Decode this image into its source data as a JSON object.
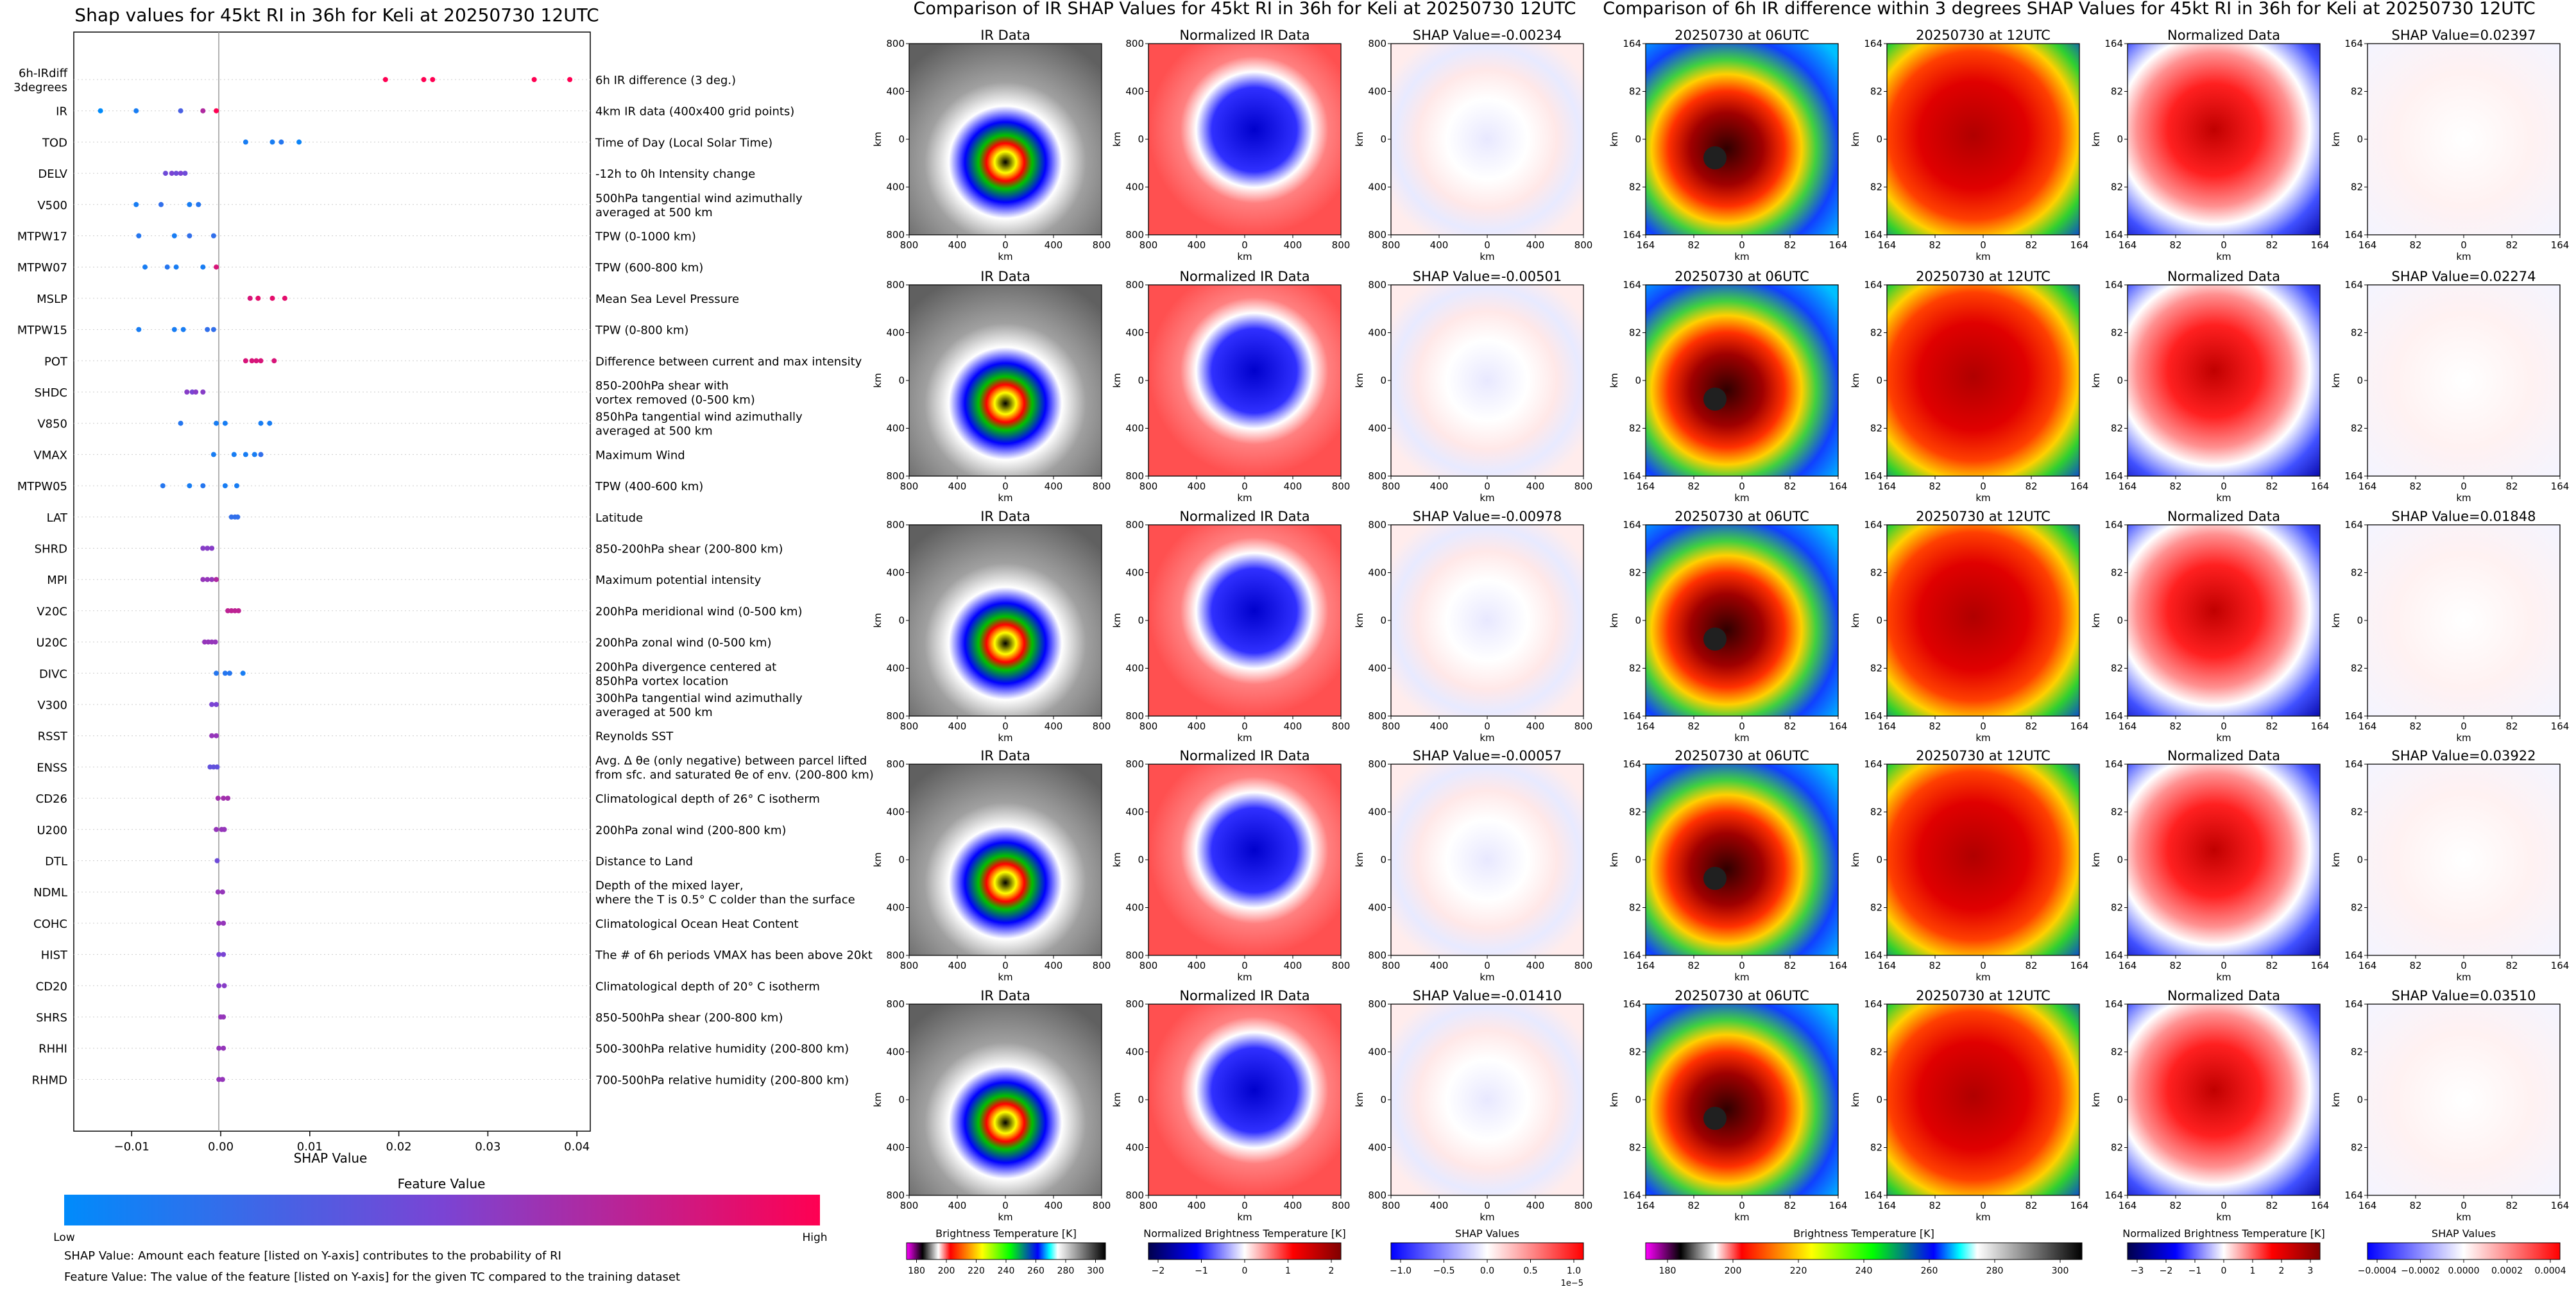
{
  "shap_panel": {
    "title": "Shap values for 45kt RI in 36h for Keli at 20250730 12UTC",
    "xlabel": "SHAP Value",
    "xticks": [
      "−0.01",
      "0.00",
      "0.01",
      "0.02",
      "0.03",
      "0.04"
    ],
    "colorbar_title": "Feature Value",
    "colorbar_low": "Low",
    "colorbar_high": "High",
    "note1": "SHAP Value: Amount each feature [listed on Y-axis] contributes to the probability of RI",
    "note2": "Feature Value: The value of the feature [listed on Y-axis] for the given TC compared to the training dataset"
  },
  "ir_section": {
    "title": "Comparison of IR SHAP Values for 45kt RI in 36h for Keli at 20250730 12UTC",
    "col_titles": [
      "IR Data",
      "Normalized IR Data"
    ],
    "shap_titles": [
      "SHAP Value=-0.00234",
      "SHAP Value=-0.00501",
      "SHAP Value=-0.00978",
      "SHAP Value=-0.00057",
      "SHAP Value=-0.01410"
    ],
    "axis_label": "km",
    "ticks": [
      "800",
      "400",
      "0",
      "400",
      "800"
    ],
    "cbar1_label": "Brightness Temperature [K]",
    "cbar1_ticks": [
      "180",
      "200",
      "220",
      "240",
      "260",
      "280",
      "300"
    ],
    "cbar2_label": "Normalized Brightness Temperature [K]",
    "cbar2_ticks": [
      "−2",
      "−1",
      "0",
      "1",
      "2"
    ],
    "cbar3_label": "SHAP Values",
    "cbar3_ticks": [
      "−1.0",
      "−0.5",
      "0.0",
      "0.5",
      "1.0"
    ],
    "cbar3_exp": "1e−5"
  },
  "diff_section": {
    "title": "Comparison of 6h IR difference within 3 degrees SHAP Values for 45kt RI in 36h for Keli at 20250730 12UTC",
    "col_titles": [
      "20250730 at 06UTC",
      "20250730 at 12UTC",
      "Normalized Data"
    ],
    "shap_titles": [
      "SHAP Value=0.02397",
      "SHAP Value=0.02274",
      "SHAP Value=0.01848",
      "SHAP Value=0.03922",
      "SHAP Value=0.03510"
    ],
    "axis_label": "km",
    "ticks": [
      "164",
      "82",
      "0",
      "82",
      "164"
    ],
    "cbar1_label": "Brightness Temperature [K]",
    "cbar1_ticks": [
      "180",
      "200",
      "220",
      "240",
      "260",
      "280",
      "300"
    ],
    "cbar2_label": "Normalized Brightness Temperature [K]",
    "cbar2_ticks": [
      "−3",
      "−2",
      "−1",
      "0",
      "1",
      "2",
      "3"
    ],
    "cbar3_label": "SHAP Values",
    "cbar3_ticks": [
      "−0.0004",
      "−0.0002",
      "0.0000",
      "0.0002",
      "0.0004"
    ]
  },
  "chart_data": {
    "type": "scatter",
    "title": "Shap values for 45kt RI in 36h for Keli at 20250730 12UTC",
    "xlabel": "SHAP Value",
    "xlim": [
      -0.0165,
      0.0415
    ],
    "legend": "colorbar-bottom",
    "features": [
      {
        "code": "6h-IRdiff\n3degrees",
        "desc": "6h IR difference (3 deg.)",
        "points": [
          [
            0.0185,
            1
          ],
          [
            0.0228,
            1
          ],
          [
            0.0238,
            1
          ],
          [
            0.0352,
            1
          ],
          [
            0.0392,
            1
          ]
        ]
      },
      {
        "code": "IR",
        "desc": "4km IR data (400x400 grid points)",
        "points": [
          [
            -0.0135,
            0
          ],
          [
            -0.0095,
            0.1
          ],
          [
            -0.0045,
            0.3
          ],
          [
            -0.002,
            0.7
          ],
          [
            -0.0005,
            1
          ]
        ]
      },
      {
        "code": "TOD",
        "desc": "Time of Day (Local Solar Time)",
        "points": [
          [
            0.0028,
            0.1
          ],
          [
            0.0058,
            0.1
          ],
          [
            0.0068,
            0.15
          ],
          [
            0.0088,
            0.05
          ]
        ]
      },
      {
        "code": "DELV",
        "desc": "-12h to 0h Intensity change",
        "points": [
          [
            -0.0062,
            0.45
          ],
          [
            -0.0055,
            0.5
          ],
          [
            -0.005,
            0.45
          ],
          [
            -0.0045,
            0.5
          ],
          [
            -0.004,
            0.45
          ]
        ]
      },
      {
        "code": "V500",
        "desc": "500hPa tangential wind azimuthally\naveraged at 500 km",
        "points": [
          [
            -0.0095,
            0.1
          ],
          [
            -0.0067,
            0.2
          ],
          [
            -0.0035,
            0.1
          ],
          [
            -0.0025,
            0.15
          ]
        ]
      },
      {
        "code": "MTPW17",
        "desc": "TPW (0-1000 km)",
        "points": [
          [
            -0.0092,
            0.15
          ],
          [
            -0.0052,
            0.1
          ],
          [
            -0.0035,
            0.2
          ],
          [
            -0.0008,
            0.2
          ]
        ]
      },
      {
        "code": "MTPW07",
        "desc": "TPW (600-800 km)",
        "points": [
          [
            -0.0085,
            0.1
          ],
          [
            -0.006,
            0.15
          ],
          [
            -0.005,
            0.1
          ],
          [
            -0.002,
            0.1
          ],
          [
            -0.0005,
            0.85
          ]
        ]
      },
      {
        "code": "MSLP",
        "desc": "Mean Sea Level Pressure",
        "points": [
          [
            0.0033,
            0.85
          ],
          [
            0.0042,
            0.9
          ],
          [
            0.0058,
            0.9
          ],
          [
            0.0072,
            0.9
          ]
        ]
      },
      {
        "code": "MTPW15",
        "desc": "TPW (0-800 km)",
        "points": [
          [
            -0.0092,
            0.1
          ],
          [
            -0.0052,
            0.1
          ],
          [
            -0.0042,
            0.1
          ],
          [
            -0.0015,
            0.2
          ],
          [
            -0.0008,
            0.2
          ]
        ]
      },
      {
        "code": "POT",
        "desc": "Difference between current and max intensity",
        "points": [
          [
            0.0028,
            0.85
          ],
          [
            0.0035,
            0.85
          ],
          [
            0.004,
            0.85
          ],
          [
            0.0045,
            0.85
          ],
          [
            0.006,
            0.85
          ]
        ]
      },
      {
        "code": "SHDC",
        "desc": "850-200hPa shear with\nvortex removed (0-500 km)",
        "points": [
          [
            -0.0038,
            0.55
          ],
          [
            -0.0032,
            0.5
          ],
          [
            -0.0028,
            0.55
          ],
          [
            -0.002,
            0.55
          ]
        ]
      },
      {
        "code": "V850",
        "desc": "850hPa tangential wind azimuthally\naveraged at 500 km",
        "points": [
          [
            -0.0045,
            0.15
          ],
          [
            -0.0005,
            0.1
          ],
          [
            0.0005,
            0.1
          ],
          [
            0.0045,
            0.1
          ],
          [
            0.0055,
            0.1
          ]
        ]
      },
      {
        "code": "VMAX",
        "desc": "Maximum Wind",
        "points": [
          [
            -0.0008,
            0.1
          ],
          [
            0.0015,
            0.1
          ],
          [
            0.0028,
            0.1
          ],
          [
            0.0038,
            0.1
          ],
          [
            0.0045,
            0.2
          ]
        ]
      },
      {
        "code": "MTPW05",
        "desc": "TPW (400-600 km)",
        "points": [
          [
            -0.0065,
            0.15
          ],
          [
            -0.0035,
            0.1
          ],
          [
            -0.002,
            0.15
          ],
          [
            0.0005,
            0.1
          ],
          [
            0.0018,
            0.1
          ]
        ]
      },
      {
        "code": "LAT",
        "desc": "Latitude",
        "points": [
          [
            0.0012,
            0.2
          ],
          [
            0.0016,
            0.2
          ],
          [
            0.0019,
            0.2
          ]
        ]
      },
      {
        "code": "SHRD",
        "desc": "850-200hPa shear (200-800 km)",
        "points": [
          [
            -0.002,
            0.55
          ],
          [
            -0.0015,
            0.55
          ],
          [
            -0.001,
            0.55
          ]
        ]
      },
      {
        "code": "MPI",
        "desc": "Maximum potential intensity",
        "points": [
          [
            -0.002,
            0.6
          ],
          [
            -0.0015,
            0.6
          ],
          [
            -0.001,
            0.6
          ],
          [
            -0.0005,
            0.7
          ]
        ]
      },
      {
        "code": "V20C",
        "desc": "200hPa meridional wind (0-500 km)",
        "points": [
          [
            0.0008,
            0.75
          ],
          [
            0.0012,
            0.75
          ],
          [
            0.0016,
            0.75
          ],
          [
            0.002,
            0.75
          ]
        ]
      },
      {
        "code": "U20C",
        "desc": "200hPa zonal wind (0-500 km)",
        "points": [
          [
            -0.0018,
            0.6
          ],
          [
            -0.0014,
            0.6
          ],
          [
            -0.001,
            0.6
          ],
          [
            -0.0006,
            0.6
          ]
        ]
      },
      {
        "code": "DIVC",
        "desc": "200hPa divergence centered at\n850hPa vortex location",
        "points": [
          [
            -0.0005,
            0.15
          ],
          [
            0.0005,
            0.15
          ],
          [
            0.001,
            0.15
          ],
          [
            0.0025,
            0.1
          ]
        ]
      },
      {
        "code": "V300",
        "desc": "300hPa tangential wind azimuthally\naveraged at 500 km",
        "points": [
          [
            -0.001,
            0.5
          ],
          [
            -0.0005,
            0.5
          ]
        ]
      },
      {
        "code": "RSST",
        "desc": "Reynolds SST",
        "points": [
          [
            -0.001,
            0.6
          ],
          [
            -0.0005,
            0.6
          ]
        ]
      },
      {
        "code": "ENSS",
        "desc": "Avg. Δ θe (only negative) between parcel lifted\nfrom sfc. and saturated θe of env. (200-800 km)",
        "points": [
          [
            -0.0012,
            0.4
          ],
          [
            -0.0008,
            0.4
          ],
          [
            -0.0004,
            0.4
          ]
        ]
      },
      {
        "code": "CD26",
        "desc": "Climatological depth of 26° C isotherm",
        "points": [
          [
            -0.0003,
            0.65
          ],
          [
            0.0003,
            0.65
          ],
          [
            0.0008,
            0.65
          ]
        ]
      },
      {
        "code": "U200",
        "desc": "200hPa zonal wind (200-800 km)",
        "points": [
          [
            -0.0005,
            0.6
          ],
          [
            0.0001,
            0.6
          ],
          [
            0.0004,
            0.6
          ]
        ]
      },
      {
        "code": "DTL",
        "desc": "Distance to Land",
        "points": [
          [
            -0.0004,
            0.45
          ]
        ]
      },
      {
        "code": "NDML",
        "desc": "Depth of the mixed layer,\nwhere the T is 0.5° C colder than the surface",
        "points": [
          [
            -0.0003,
            0.6
          ],
          [
            0.0002,
            0.6
          ]
        ]
      },
      {
        "code": "COHC",
        "desc": "Climatological Ocean Heat Content",
        "points": [
          [
            -0.0002,
            0.6
          ],
          [
            0.0003,
            0.6
          ]
        ]
      },
      {
        "code": "HIST",
        "desc": "The # of 6h periods VMAX has been above 20kt",
        "points": [
          [
            -0.0002,
            0.5
          ],
          [
            0.0003,
            0.5
          ]
        ]
      },
      {
        "code": "CD20",
        "desc": "Climatological depth of 20° C isotherm",
        "points": [
          [
            -0.0002,
            0.55
          ],
          [
            0.0004,
            0.55
          ]
        ]
      },
      {
        "code": "SHRS",
        "desc": "850-500hPa shear (200-800 km)",
        "points": [
          [
            0.0,
            0.6
          ],
          [
            0.0003,
            0.6
          ]
        ]
      },
      {
        "code": "RHHI",
        "desc": "500-300hPa relative humidity (200-800 km)",
        "points": [
          [
            -0.0002,
            0.6
          ],
          [
            0.0003,
            0.6
          ]
        ]
      },
      {
        "code": "RHMD",
        "desc": "700-500hPa relative humidity (200-800 km)",
        "points": [
          [
            -0.0002,
            0.6
          ],
          [
            0.0002,
            0.6
          ]
        ]
      }
    ]
  },
  "colors": {
    "low": "#008bfb",
    "mid": "#7a44d4",
    "high": "#ff0052"
  }
}
